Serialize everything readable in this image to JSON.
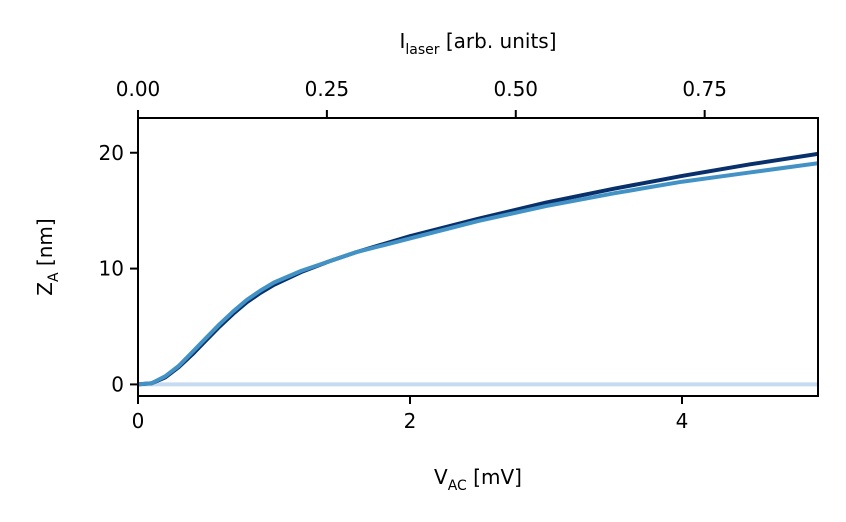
{
  "chart_data": {
    "type": "line",
    "xlabel": "V",
    "xlabel_sub": "AC",
    "xlabel_unit": " [mV]",
    "ylabel": "Z",
    "ylabel_sub": "A",
    "ylabel_unit": " [nm]",
    "x2label": "I",
    "x2label_sub": "laser",
    "x2label_unit": " [arb. units]",
    "xlim": [
      0,
      5
    ],
    "ylim": [
      -1,
      23
    ],
    "x2lim": [
      0,
      0.9
    ],
    "xticks": [
      0,
      2,
      4
    ],
    "xtick_labels": [
      "0",
      "2",
      "4"
    ],
    "yticks": [
      0,
      10,
      20
    ],
    "ytick_labels": [
      "0",
      "10",
      "20"
    ],
    "x2ticks": [
      0.0,
      0.25,
      0.5,
      0.75
    ],
    "x2tick_labels": [
      "0.00",
      "0.25",
      "0.50",
      "0.75"
    ],
    "grid": false,
    "series": [
      {
        "color": "#c6dbef",
        "x": [
          0,
          1,
          2,
          3,
          4,
          5
        ],
        "y": [
          0,
          0,
          0,
          0,
          0,
          0
        ]
      },
      {
        "color": "#08306b",
        "x": [
          0,
          0.1,
          0.2,
          0.3,
          0.4,
          0.5,
          0.6,
          0.7,
          0.8,
          0.9,
          1.0,
          1.2,
          1.4,
          1.6,
          1.8,
          2.0,
          2.5,
          3.0,
          3.5,
          4.0,
          4.5,
          5.0
        ],
        "y": [
          0,
          0.1,
          0.6,
          1.5,
          2.6,
          3.8,
          5.0,
          6.1,
          7.1,
          7.9,
          8.6,
          9.7,
          10.6,
          11.4,
          12.1,
          12.8,
          14.3,
          15.7,
          16.9,
          18.0,
          19.0,
          19.9
        ]
      },
      {
        "color": "#4292c6",
        "x": [
          0,
          0.1,
          0.2,
          0.3,
          0.4,
          0.5,
          0.6,
          0.7,
          0.8,
          0.9,
          1.0,
          1.2,
          1.4,
          1.6,
          1.8,
          2.0,
          2.5,
          3.0,
          3.5,
          4.0,
          4.5,
          5.0
        ],
        "y": [
          0,
          0.1,
          0.7,
          1.6,
          2.8,
          4.0,
          5.2,
          6.3,
          7.3,
          8.1,
          8.8,
          9.8,
          10.6,
          11.4,
          12.0,
          12.6,
          14.1,
          15.4,
          16.5,
          17.5,
          18.3,
          19.1
        ]
      }
    ]
  }
}
